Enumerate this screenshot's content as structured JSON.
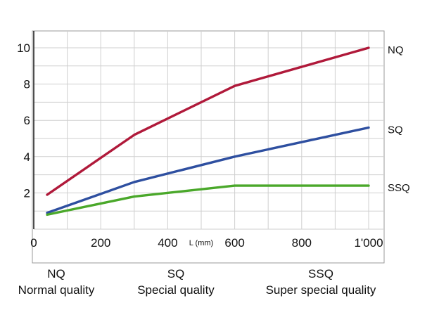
{
  "chart_data": {
    "type": "line",
    "x": [
      40,
      300,
      600,
      1000
    ],
    "xticks": [
      "0",
      "200",
      "400",
      "600",
      "800",
      "1'000"
    ],
    "xtick_values": [
      0,
      200,
      400,
      600,
      800,
      1000
    ],
    "xlabel": "L (mm)",
    "xlim": [
      0,
      1050
    ],
    "yticks": [
      "2",
      "4",
      "6",
      "8",
      "10"
    ],
    "ytick_values": [
      2,
      4,
      6,
      8,
      10
    ],
    "ylim": [
      0,
      11
    ],
    "grid": true,
    "series": [
      {
        "name": "NQ",
        "color": "#b0193a",
        "values": [
          1.9,
          5.2,
          7.9,
          10.0
        ]
      },
      {
        "name": "SQ",
        "color": "#2e4fa0",
        "values": [
          0.9,
          2.6,
          4.0,
          5.6
        ]
      },
      {
        "name": "SSQ",
        "color": "#4aa82a",
        "values": [
          0.8,
          1.8,
          2.4,
          2.4
        ]
      }
    ]
  },
  "legend": [
    {
      "code": "NQ",
      "desc": "Normal quality"
    },
    {
      "code": "SQ",
      "desc": "Special quality"
    },
    {
      "code": "SSQ",
      "desc": "Super special quality"
    }
  ]
}
